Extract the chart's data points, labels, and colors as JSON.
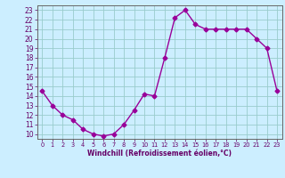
{
  "x": [
    0,
    1,
    2,
    3,
    4,
    5,
    6,
    7,
    8,
    9,
    10,
    11,
    12,
    13,
    14,
    15,
    16,
    17,
    18,
    19,
    20,
    21,
    22,
    23
  ],
  "y": [
    14.5,
    13.0,
    12.0,
    11.5,
    10.5,
    10.0,
    9.8,
    10.0,
    11.0,
    12.5,
    14.2,
    14.0,
    18.0,
    22.2,
    23.0,
    21.5,
    21.0,
    21.0,
    21.0,
    21.0,
    21.0,
    20.0,
    19.0,
    14.5
  ],
  "line_color": "#990099",
  "marker": "D",
  "marker_size": 2.5,
  "bg_color": "#cceeff",
  "grid_color": "#99cccc",
  "xlabel": "Windchill (Refroidissement éolien,°C)",
  "ylabel_ticks": [
    10,
    11,
    12,
    13,
    14,
    15,
    16,
    17,
    18,
    19,
    20,
    21,
    22,
    23
  ],
  "xlim": [
    -0.5,
    23.5
  ],
  "ylim": [
    9.5,
    23.5
  ],
  "label_color": "#660066",
  "axis_color": "#666666",
  "tick_color": "#660066",
  "xlabel_fontsize": 5.5,
  "ytick_fontsize": 5.5,
  "xtick_fontsize": 4.8,
  "linewidth": 1.0
}
